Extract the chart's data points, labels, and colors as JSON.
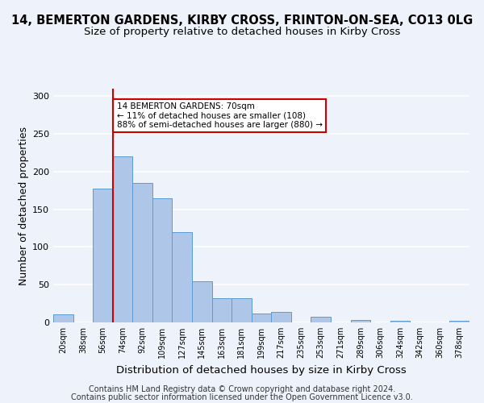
{
  "title_line1": "14, BEMERTON GARDENS, KIRBY CROSS, FRINTON-ON-SEA, CO13 0LG",
  "title_line2": "Size of property relative to detached houses in Kirby Cross",
  "xlabel": "Distribution of detached houses by size in Kirby Cross",
  "ylabel": "Number of detached properties",
  "categories": [
    "20sqm",
    "38sqm",
    "56sqm",
    "74sqm",
    "92sqm",
    "109sqm",
    "127sqm",
    "145sqm",
    "163sqm",
    "181sqm",
    "199sqm",
    "217sqm",
    "235sqm",
    "253sqm",
    "271sqm",
    "289sqm",
    "306sqm",
    "324sqm",
    "342sqm",
    "360sqm",
    "378sqm"
  ],
  "values": [
    11,
    0,
    177,
    220,
    185,
    165,
    120,
    55,
    32,
    32,
    12,
    14,
    0,
    8,
    0,
    3,
    0,
    2,
    0,
    0,
    2
  ],
  "bar_color": "#aec6e8",
  "bar_edge_color": "#5b9bd5",
  "vline_x_index": 3,
  "vline_color": "#cc0000",
  "annotation_text": "14 BEMERTON GARDENS: 70sqm\n← 11% of detached houses are smaller (108)\n88% of semi-detached houses are larger (880) →",
  "annotation_box_color": "#ffffff",
  "annotation_box_edge": "#cc0000",
  "ylim": [
    0,
    310
  ],
  "yticks": [
    0,
    50,
    100,
    150,
    200,
    250,
    300
  ],
  "footer_line1": "Contains HM Land Registry data © Crown copyright and database right 2024.",
  "footer_line2": "Contains public sector information licensed under the Open Government Licence v3.0.",
  "background_color": "#eef2fa",
  "grid_color": "#ffffff",
  "title_fontsize": 10.5,
  "subtitle_fontsize": 9.5,
  "axis_label_fontsize": 9,
  "tick_fontsize": 7,
  "footer_fontsize": 7
}
